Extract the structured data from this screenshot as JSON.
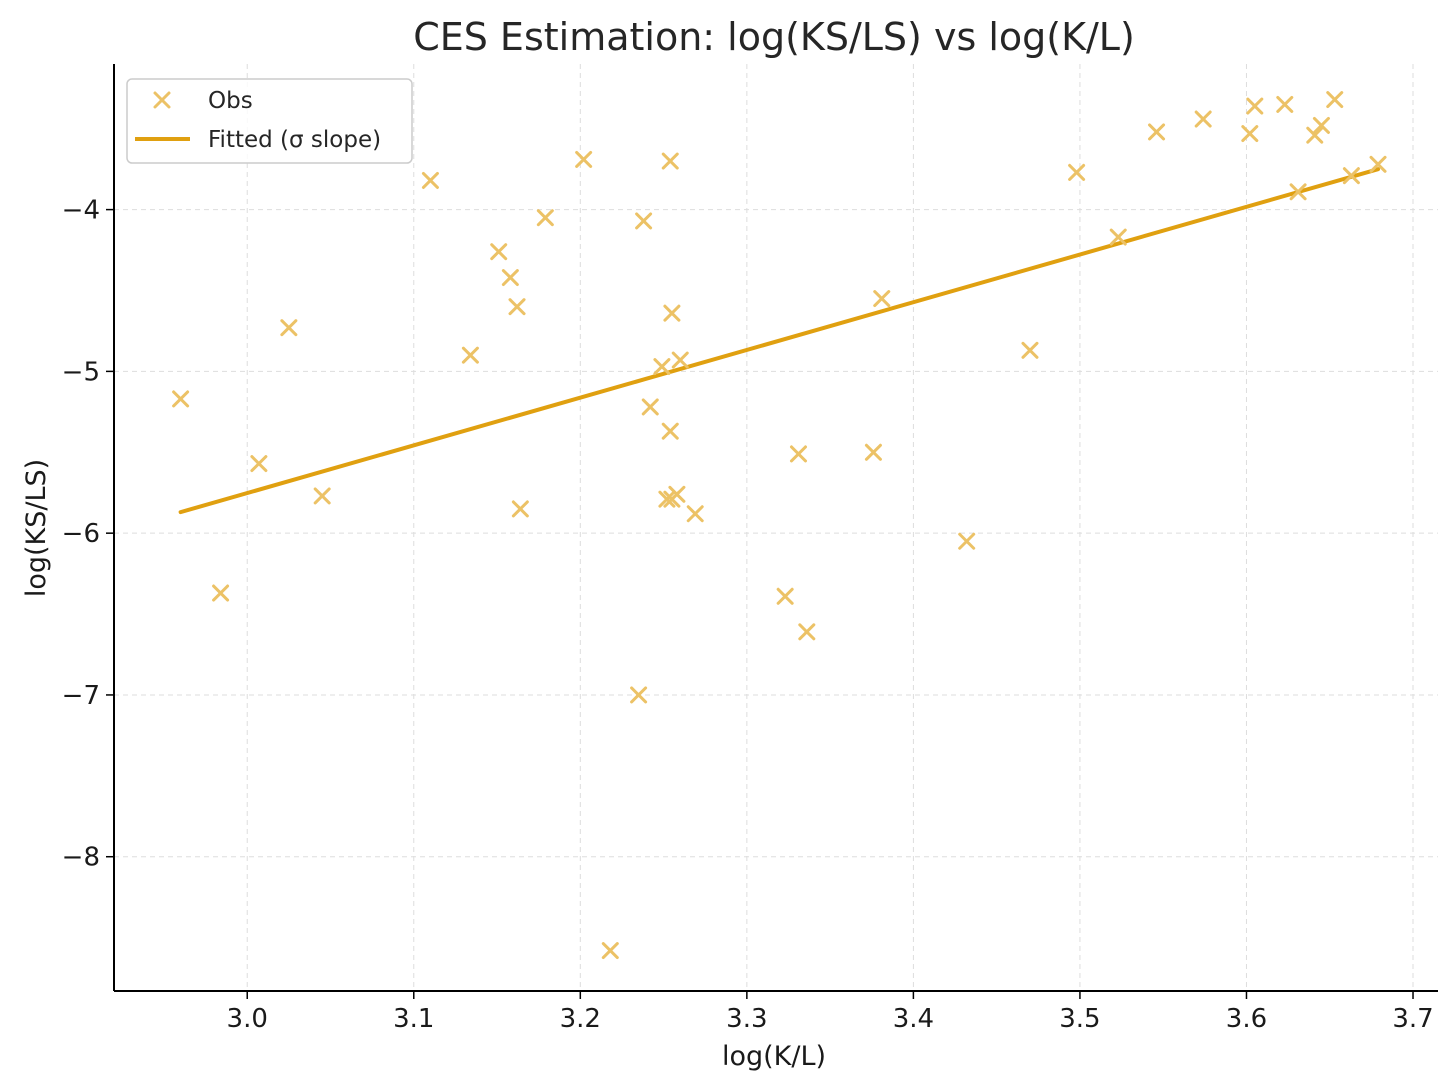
{
  "chart_data": {
    "type": "scatter",
    "title": "CES Estimation: log(KS/LS) vs log(K/L)",
    "xlabel": "log(K/L)",
    "ylabel": "log(KS/LS)",
    "xlim": [
      2.92,
      3.715
    ],
    "ylim": [
      -8.83,
      -3.1
    ],
    "x_ticks": [
      3.0,
      3.1,
      3.2,
      3.3,
      3.4,
      3.5,
      3.6,
      3.7
    ],
    "x_tick_labels": [
      "3.0",
      "3.1",
      "3.2",
      "3.3",
      "3.4",
      "3.5",
      "3.6",
      "3.7"
    ],
    "y_ticks": [
      -8,
      -7,
      -6,
      -5,
      -4
    ],
    "y_tick_labels": [
      "−8",
      "−7",
      "−6",
      "−5",
      "−4"
    ],
    "grid": true,
    "legend_position": "top-left",
    "colors": {
      "line": "#e0a010",
      "marker": "#ecc266",
      "axis": "#000000",
      "grid": "#dddddd"
    },
    "series": [
      {
        "name": "Obs",
        "kind": "scatter",
        "marker": "x",
        "x": [
          2.96,
          2.984,
          3.007,
          3.025,
          3.045,
          3.11,
          3.134,
          3.151,
          3.158,
          3.162,
          3.164,
          3.179,
          3.202,
          3.218,
          3.235,
          3.238,
          3.242,
          3.249,
          3.252,
          3.254,
          3.254,
          3.255,
          3.255,
          3.258,
          3.26,
          3.269,
          3.323,
          3.331,
          3.336,
          3.376,
          3.381,
          3.432,
          3.47,
          3.498,
          3.523,
          3.546,
          3.574,
          3.602,
          3.605,
          3.623,
          3.631,
          3.641,
          3.645,
          3.653,
          3.663,
          3.679
        ],
        "y": [
          -5.17,
          -6.37,
          -5.57,
          -4.73,
          -5.77,
          -3.82,
          -4.9,
          -4.26,
          -4.42,
          -4.6,
          -5.85,
          -4.05,
          -3.69,
          -8.58,
          -7.0,
          -4.07,
          -5.22,
          -4.97,
          -5.79,
          -3.7,
          -5.37,
          -4.64,
          -5.79,
          -5.76,
          -4.93,
          -5.88,
          -6.39,
          -5.51,
          -6.61,
          -5.5,
          -4.55,
          -6.05,
          -4.87,
          -3.77,
          -4.17,
          -3.52,
          -3.44,
          -3.53,
          -3.36,
          -3.35,
          -3.89,
          -3.54,
          -3.48,
          -3.32,
          -3.79,
          -3.72
        ]
      },
      {
        "name": "Fitted (σ slope)",
        "kind": "line",
        "x": [
          2.96,
          3.679
        ],
        "y": [
          -5.87,
          -3.75
        ]
      }
    ]
  }
}
